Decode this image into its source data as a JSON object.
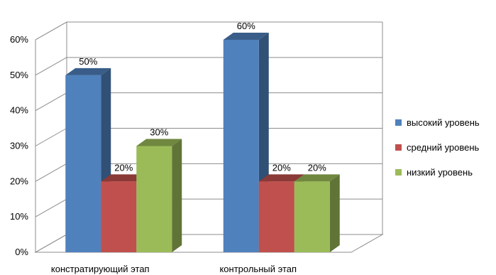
{
  "chart_data": {
    "type": "bar",
    "categories": [
      "констратирующий этап",
      "контрольный этап"
    ],
    "series": [
      {
        "name": "высокий уровень",
        "values": [
          50,
          60
        ],
        "color": "#4F81BD"
      },
      {
        "name": "средний уровень",
        "values": [
          20,
          20
        ],
        "color": "#C0504D"
      },
      {
        "name": "низкий уровень",
        "values": [
          30,
          20
        ],
        "color": "#9BBB59"
      }
    ],
    "value_labels": [
      [
        "50%",
        "60%"
      ],
      [
        "20%",
        "20%"
      ],
      [
        "30%",
        "20%"
      ]
    ],
    "y_ticks": [
      "0%",
      "10%",
      "20%",
      "30%",
      "40%",
      "50%",
      "60%"
    ],
    "ylim": [
      0,
      60
    ],
    "grid": true,
    "legend_position": "right",
    "style": "3d-clustered-column"
  }
}
